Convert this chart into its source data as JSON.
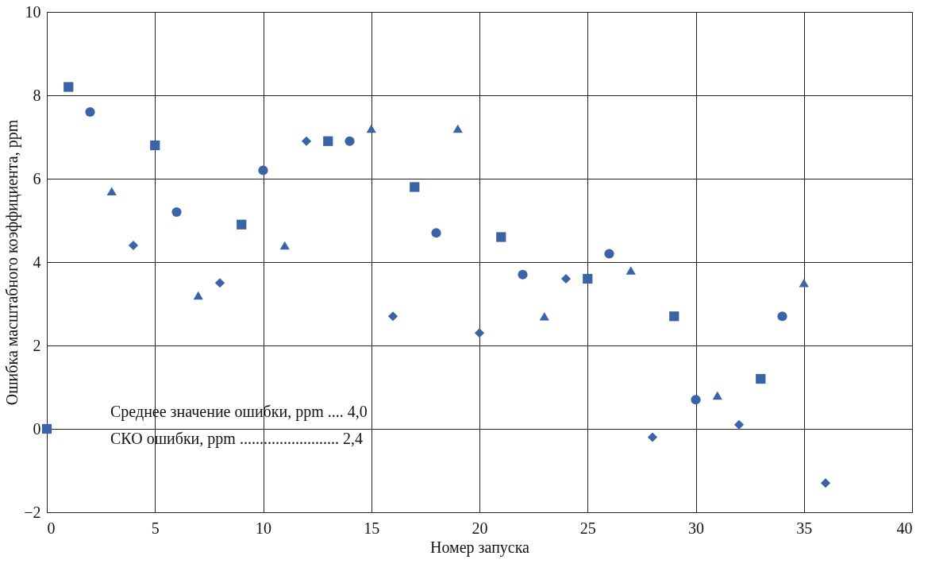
{
  "chart_data": {
    "type": "scatter",
    "xlabel": "Номер запуска",
    "ylabel": "Ошибка масштабного коэффициента, ppm",
    "xlim": [
      0,
      40
    ],
    "xticks": [
      0,
      5,
      10,
      15,
      20,
      25,
      30,
      35,
      40
    ],
    "ylim": [
      -2,
      10
    ],
    "yticks": [
      -2,
      0,
      2,
      4,
      6,
      8,
      10
    ],
    "grid": true,
    "annotations": [
      "Среднее значение ошибки, ppm .... 4,0",
      "СКО ошибки, ppm ......................... 2,4"
    ],
    "series": [
      {
        "color": "#3b64a8",
        "marker": "square",
        "x": [
          0,
          1,
          5,
          9,
          13,
          17,
          21,
          25,
          29,
          33
        ],
        "values": [
          0,
          8.2,
          6.8,
          4.9,
          6.9,
          5.8,
          4.6,
          3.6,
          2.7,
          1.2
        ]
      },
      {
        "color": "#3b64a8",
        "marker": "circle",
        "x": [
          2,
          6,
          10,
          14,
          18,
          22,
          26,
          30,
          34
        ],
        "values": [
          7.6,
          5.2,
          6.2,
          6.9,
          4.7,
          3.7,
          4.2,
          0.7,
          2.7
        ]
      },
      {
        "color": "#3b64a8",
        "marker": "triangle",
        "x": [
          3,
          7,
          11,
          15,
          19,
          23,
          27,
          31,
          35
        ],
        "values": [
          5.7,
          3.2,
          4.4,
          7.2,
          7.2,
          2.7,
          3.8,
          0.8,
          3.5
        ]
      },
      {
        "color": "#3b64a8",
        "marker": "diamond",
        "x": [
          4,
          8,
          12,
          16,
          20,
          24,
          28,
          32,
          36
        ],
        "values": [
          4.4,
          3.5,
          6.9,
          2.7,
          2.3,
          3.6,
          -0.2,
          0.1,
          -1.3
        ]
      }
    ]
  }
}
